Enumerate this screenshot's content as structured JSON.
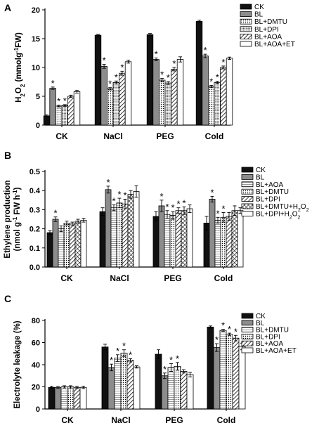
{
  "colors": {
    "axis": "#000000",
    "dark": "#111111",
    "gray": "#8c8c8c",
    "white": "#ffffff"
  },
  "chart_data": [
    {
      "panel": "A",
      "type": "bar",
      "ylabel_main": "H",
      "ylabel_sub": "2",
      "ylabel_main2": "O",
      "ylabel_sub2": "2",
      "ylabel_rest": " (mmolg",
      "ylabel_sup": "-1",
      "ylabel_end": "FW)",
      "ylim": [
        0,
        20
      ],
      "yticks": [
        0,
        5,
        10,
        15,
        20
      ],
      "categories": [
        "CK",
        "NaCl",
        "PEG",
        "Cold"
      ],
      "series": [
        {
          "name": "CK",
          "pattern": "black",
          "values": [
            1.6,
            15.6,
            15.7,
            18.0
          ],
          "errors": [
            0.15,
            0.15,
            0.2,
            0.2
          ],
          "sig": [
            false,
            false,
            false,
            false
          ]
        },
        {
          "name": "BL",
          "pattern": "gray",
          "values": [
            6.4,
            10.2,
            11.4,
            12.0
          ],
          "errors": [
            0.2,
            0.35,
            0.25,
            0.3
          ],
          "sig": [
            true,
            true,
            true,
            true
          ]
        },
        {
          "name": "BL+DMTU",
          "pattern": "dots",
          "values": [
            3.3,
            6.3,
            7.8,
            6.7
          ],
          "errors": [
            0.15,
            0.2,
            0.3,
            0.2
          ],
          "sig": [
            true,
            true,
            true,
            true
          ]
        },
        {
          "name": "BL+DPI",
          "pattern": "dots-dense",
          "values": [
            3.4,
            7.4,
            7.3,
            7.4
          ],
          "errors": [
            0.15,
            0.25,
            0.25,
            0.2
          ],
          "sig": [
            true,
            true,
            true,
            true
          ]
        },
        {
          "name": "BL+AOA",
          "pattern": "hatch",
          "values": [
            5.0,
            9.0,
            9.7,
            10.0
          ],
          "errors": [
            0.2,
            0.35,
            0.3,
            0.25
          ],
          "sig": [
            false,
            true,
            true,
            true
          ]
        },
        {
          "name": "BL+AOA+ET",
          "pattern": "white",
          "values": [
            5.8,
            11.0,
            11.4,
            11.6
          ],
          "errors": [
            0.25,
            0.25,
            0.45,
            0.2
          ],
          "sig": [
            false,
            false,
            false,
            false
          ]
        }
      ]
    },
    {
      "panel": "B",
      "type": "bar",
      "ylabel_line1": "Ethylene production",
      "ylabel_line2a": "(nmol g",
      "ylabel_line2sup": "-1",
      "ylabel_line2b": " FW h",
      "ylabel_line2sup2": "-1",
      "ylabel_line2c": ")",
      "ylim": [
        0,
        0.5
      ],
      "yticks": [
        0.0,
        0.1,
        0.2,
        0.3,
        0.4,
        0.5
      ],
      "ytick_labels": [
        "0.0",
        "0.1",
        "0.2",
        "0.3",
        "0.4",
        "0.5"
      ],
      "categories": [
        "CK",
        "NaCl",
        "PEG",
        "Cold"
      ],
      "series": [
        {
          "name": "CK",
          "pattern": "black",
          "values": [
            0.18,
            0.29,
            0.265,
            0.23
          ],
          "errors": [
            0.01,
            0.02,
            0.025,
            0.035
          ],
          "sig": [
            false,
            false,
            false,
            false
          ]
        },
        {
          "name": "BL",
          "pattern": "gray",
          "values": [
            0.25,
            0.405,
            0.32,
            0.355
          ],
          "errors": [
            0.012,
            0.018,
            0.03,
            0.015
          ],
          "sig": [
            true,
            true,
            true,
            true
          ]
        },
        {
          "name": "BL+AOA",
          "pattern": "lines-light",
          "values": [
            0.2,
            0.31,
            0.275,
            0.245
          ],
          "errors": [
            0.015,
            0.015,
            0.02,
            0.015
          ],
          "sig": [
            false,
            true,
            true,
            true
          ]
        },
        {
          "name": "BL+DMTU",
          "pattern": "dots",
          "values": [
            0.23,
            0.335,
            0.27,
            0.26
          ],
          "errors": [
            0.01,
            0.025,
            0.02,
            0.025
          ],
          "sig": [
            false,
            true,
            true,
            true
          ]
        },
        {
          "name": "BL+DPI",
          "pattern": "hatch",
          "values": [
            0.225,
            0.33,
            0.295,
            0.265
          ],
          "errors": [
            0.01,
            0.025,
            0.015,
            0.02
          ],
          "sig": [
            false,
            true,
            true,
            false
          ]
        },
        {
          "name": "BL+DMTU+H2O2",
          "label_main": "BL+DMTU+H",
          "label_sub": "2",
          "label_main2": "O",
          "label_sub2": "2",
          "pattern": "crosshatch",
          "values": [
            0.24,
            0.38,
            0.295,
            0.295
          ],
          "errors": [
            0.01,
            0.02,
            0.02,
            0.025
          ],
          "sig": [
            false,
            false,
            true,
            false
          ]
        },
        {
          "name": "BL+DPI+H2O2",
          "label_main": "BL+DPI+H",
          "label_sub": "2",
          "label_main2": "O",
          "label_sub2": "2",
          "pattern": "white",
          "values": [
            0.245,
            0.395,
            0.305,
            0.295
          ],
          "errors": [
            0.01,
            0.03,
            0.02,
            0.015
          ],
          "sig": [
            false,
            false,
            false,
            false
          ]
        }
      ]
    },
    {
      "panel": "C",
      "type": "bar",
      "ylabel": "Electrolyte leakage (%)",
      "ylim": [
        0,
        80
      ],
      "yticks": [
        0,
        20,
        40,
        60,
        80
      ],
      "categories": [
        "CK",
        "NaCl",
        "PEG",
        "Cold"
      ],
      "series": [
        {
          "name": "CK",
          "pattern": "black",
          "values": [
            19.5,
            56.0,
            49.5,
            74.0
          ],
          "errors": [
            1.0,
            2.5,
            4.0,
            1.0
          ],
          "sig": [
            false,
            false,
            false,
            false
          ]
        },
        {
          "name": "BL",
          "pattern": "gray",
          "values": [
            19.5,
            37.5,
            30.0,
            55.5
          ],
          "errors": [
            1.0,
            3.0,
            2.5,
            3.5
          ],
          "sig": [
            false,
            true,
            true,
            true
          ]
        },
        {
          "name": "BL+DMTU",
          "pattern": "lines-light",
          "values": [
            20.0,
            46.0,
            37.5,
            71.0
          ],
          "errors": [
            1.0,
            3.0,
            3.5,
            1.0
          ],
          "sig": [
            false,
            true,
            true,
            true
          ]
        },
        {
          "name": "BL+DPI",
          "pattern": "dots",
          "values": [
            20.0,
            50.5,
            38.5,
            67.5
          ],
          "errors": [
            1.0,
            3.0,
            3.5,
            1.0
          ],
          "sig": [
            false,
            true,
            true,
            true
          ]
        },
        {
          "name": "BL+AOA",
          "pattern": "hatch",
          "values": [
            19.5,
            44.0,
            34.0,
            64.0
          ],
          "errors": [
            1.0,
            1.5,
            1.5,
            2.5
          ],
          "sig": [
            false,
            true,
            false,
            true
          ]
        },
        {
          "name": "BL+AOA+ET",
          "pattern": "white",
          "values": [
            19.5,
            38.0,
            31.0,
            56.5
          ],
          "errors": [
            1.0,
            1.0,
            2.0,
            3.0
          ],
          "sig": [
            false,
            false,
            false,
            false
          ]
        }
      ]
    }
  ]
}
